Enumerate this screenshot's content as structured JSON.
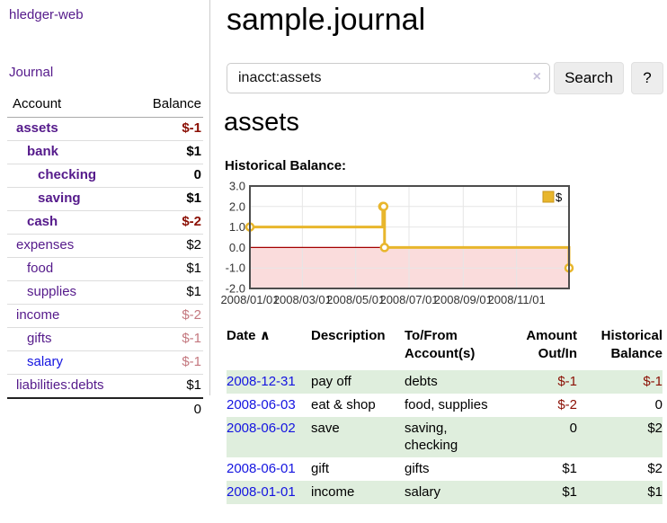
{
  "app": {
    "brand": "hledger-web",
    "nav_journal": "Journal"
  },
  "colors": {
    "link_purple": "#551a8b",
    "link_blue": "#1414e0",
    "negative_dark": "#8b0f04",
    "negative_light": "#c4787f",
    "row_stripe_green": "#dfeedd"
  },
  "sidebar": {
    "header": {
      "account": "Account",
      "balance": "Balance"
    },
    "rows": [
      {
        "name": "assets",
        "balance": "$-1",
        "level": 1,
        "bold": true,
        "balance_color": "negative-dark"
      },
      {
        "name": "bank",
        "balance": "$1",
        "level": 2,
        "bold": true,
        "balance_color": "normal"
      },
      {
        "name": "checking",
        "balance": "0",
        "level": 3,
        "bold": true,
        "balance_color": "normal"
      },
      {
        "name": "saving",
        "balance": "$1",
        "level": 3,
        "bold": true,
        "balance_color": "normal"
      },
      {
        "name": "cash",
        "balance": "$-2",
        "level": 2,
        "bold": true,
        "balance_color": "negative-dark"
      },
      {
        "name": "expenses",
        "balance": "$2",
        "level": 1,
        "bold": false,
        "balance_color": "normal"
      },
      {
        "name": "food",
        "balance": "$1",
        "level": 2,
        "bold": false,
        "balance_color": "normal"
      },
      {
        "name": "supplies",
        "balance": "$1",
        "level": 2,
        "bold": false,
        "balance_color": "normal"
      },
      {
        "name": "income",
        "balance": "$-2",
        "level": 1,
        "bold": false,
        "balance_color": "negative-light"
      },
      {
        "name": "gifts",
        "balance": "$-1",
        "level": 2,
        "bold": false,
        "balance_color": "negative-light"
      },
      {
        "name": "salary",
        "balance": "$-1",
        "level": 2,
        "bold": false,
        "balance_color": "negative-light",
        "link_color": "blue"
      },
      {
        "name": "liabilities:debts",
        "balance": "$1",
        "level": 1,
        "bold": false,
        "balance_color": "normal"
      }
    ],
    "total": "0"
  },
  "header": {
    "title": "sample.journal"
  },
  "search": {
    "value": "inacct:assets",
    "clear_icon": "×",
    "button_label": "Search",
    "help_label": "?"
  },
  "account_page": {
    "title": "assets",
    "chart_label": "Historical Balance:"
  },
  "chart_data": {
    "type": "line",
    "title": "Historical Balance:",
    "steps": true,
    "series": [
      {
        "name": "$",
        "points": [
          {
            "date": "2008-01-01",
            "value": 1
          },
          {
            "date": "2008-06-01",
            "value": 2
          },
          {
            "date": "2008-06-02",
            "value": 2
          },
          {
            "date": "2008-06-03",
            "value": 0
          },
          {
            "date": "2008-12-31",
            "value": -1
          }
        ]
      }
    ],
    "x_range": [
      "2008-01-01",
      "2008-12-31"
    ],
    "ylim": [
      -2,
      3
    ],
    "y_ticks": [
      3.0,
      2.0,
      1.0,
      0.0,
      -1.0,
      -2.0
    ],
    "x_ticks": [
      "2008/01/01",
      "2008/03/01",
      "2008/05/01",
      "2008/07/01",
      "2008/09/01",
      "2008/11/01"
    ],
    "legend": "$",
    "legend_position": "top-right",
    "grid": true,
    "line_color": "#e8b62c",
    "marker_fill": "#ffffff",
    "negative_fill": "#fadcdc",
    "zero_line_color": "#a40000",
    "grid_color": "#e6e6e6",
    "border_color": "#4d4d4d",
    "tick_text_color": "#333333"
  },
  "register": {
    "columns": [
      {
        "label": "Date",
        "sort_icon": "∧",
        "align": "left"
      },
      {
        "label": "Description",
        "align": "left"
      },
      {
        "label": "To/From Account(s)",
        "align": "left"
      },
      {
        "label": "Amount Out/In",
        "align": "right"
      },
      {
        "label": "Historical Balance",
        "align": "right"
      }
    ],
    "rows": [
      {
        "date": "2008-12-31",
        "description": "pay off",
        "accounts": "debts",
        "amount": {
          "text": "$-1",
          "negative": true
        },
        "balance": {
          "text": "$-1",
          "negative": true
        }
      },
      {
        "date": "2008-06-03",
        "description": "eat & shop",
        "accounts": "food, supplies",
        "amount": {
          "text": "$-2",
          "negative": true
        },
        "balance": {
          "text": "0",
          "negative": false
        }
      },
      {
        "date": "2008-06-02",
        "description": "save",
        "accounts": "saving, checking",
        "amount": {
          "text": "0",
          "negative": false
        },
        "balance": {
          "text": "$2",
          "negative": false
        }
      },
      {
        "date": "2008-06-01",
        "description": "gift",
        "accounts": "gifts",
        "amount": {
          "text": "$1",
          "negative": false
        },
        "balance": {
          "text": "$2",
          "negative": false
        }
      },
      {
        "date": "2008-01-01",
        "description": "income",
        "accounts": "salary",
        "amount": {
          "text": "$1",
          "negative": false
        },
        "balance": {
          "text": "$1",
          "negative": false
        }
      }
    ]
  }
}
